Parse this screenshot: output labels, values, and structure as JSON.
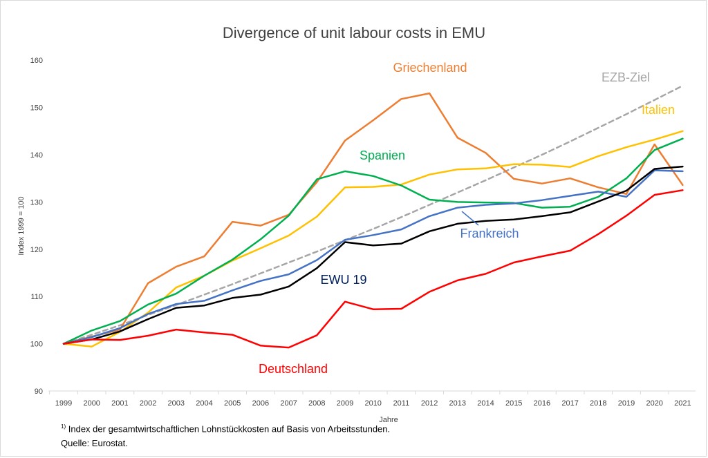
{
  "chart_data": {
    "type": "line",
    "title": "Divergence of unit labour costs in EMU",
    "xlabel": "Jahre",
    "ylabel": "Index 1999 = 100",
    "x": [
      1999,
      2000,
      2001,
      2002,
      2003,
      2004,
      2005,
      2006,
      2007,
      2008,
      2009,
      2010,
      2011,
      2012,
      2013,
      2014,
      2015,
      2016,
      2017,
      2018,
      2019,
      2020,
      2021
    ],
    "ylim": [
      90,
      160
    ],
    "yticks": [
      90,
      100,
      110,
      120,
      130,
      140,
      150,
      160
    ],
    "grid": false,
    "legend": "none",
    "series": [
      {
        "name": "EZB-Ziel",
        "color": "#a6a6a6",
        "dashed": true,
        "values": [
          100,
          101.9,
          103.9,
          106.1,
          108.2,
          110.4,
          112.6,
          114.9,
          117.2,
          119.5,
          121.9,
          124.3,
          126.8,
          129.4,
          132.0,
          134.6,
          137.3,
          140.0,
          142.8,
          145.7,
          148.6,
          151.6,
          154.6
        ]
      },
      {
        "name": "Griechenland",
        "color": "#ed7d31",
        "values": [
          100,
          101.5,
          103.0,
          112.8,
          116.3,
          118.5,
          125.8,
          125.0,
          127.3,
          134.2,
          143.0,
          147.3,
          151.8,
          153.0,
          143.6,
          140.4,
          134.9,
          133.9,
          135.0,
          133.1,
          131.7,
          142.2,
          133.6
        ]
      },
      {
        "name": "Italien",
        "color": "#ffc000",
        "values": [
          100,
          99.4,
          102.5,
          106.6,
          111.9,
          114.4,
          117.6,
          120.2,
          122.9,
          126.9,
          133.1,
          133.2,
          133.7,
          135.8,
          136.9,
          137.1,
          138.0,
          137.9,
          137.4,
          139.7,
          141.6,
          143.2,
          145.0
        ]
      },
      {
        "name": "Spanien",
        "color": "#00b050",
        "values": [
          100,
          102.8,
          104.8,
          108.3,
          110.6,
          114.4,
          117.8,
          122.1,
          127.1,
          134.8,
          136.5,
          135.5,
          133.5,
          130.5,
          130.0,
          129.9,
          129.8,
          128.8,
          129.0,
          131.1,
          135.0,
          141.0,
          143.4
        ]
      },
      {
        "name": "Frankreich",
        "color": "#4472c4",
        "values": [
          100,
          101.4,
          103.3,
          106.3,
          108.4,
          109.1,
          111.3,
          113.3,
          114.7,
          117.7,
          122.0,
          123.0,
          124.2,
          127.0,
          128.8,
          129.4,
          129.7,
          130.4,
          131.3,
          132.2,
          131.1,
          136.7,
          136.5
        ]
      },
      {
        "name": "EWU 19",
        "color": "#000000",
        "values": [
          100,
          100.9,
          102.6,
          105.2,
          107.6,
          108.1,
          109.7,
          110.4,
          112.1,
          116.0,
          121.5,
          120.8,
          121.2,
          123.8,
          125.4,
          126.0,
          126.3,
          127.0,
          127.8,
          130.1,
          132.4,
          137.0,
          137.5
        ]
      },
      {
        "name": "Deutschland",
        "color": "#ff0000",
        "values": [
          100,
          100.9,
          100.8,
          101.7,
          103.0,
          102.4,
          101.9,
          99.6,
          99.2,
          101.8,
          108.9,
          107.3,
          107.4,
          111.0,
          113.4,
          114.8,
          117.2,
          118.5,
          119.7,
          123.2,
          127.1,
          131.5,
          132.5
        ]
      }
    ],
    "labels": [
      {
        "text": "Griechenland",
        "color": "#ed7d31"
      },
      {
        "text": "EZB-Ziel",
        "color": "#a6a6a6"
      },
      {
        "text": "Italien",
        "color": "#ffc000"
      },
      {
        "text": "Spanien",
        "color": "#00b050"
      },
      {
        "text": "Frankreich",
        "color": "#4472c4"
      },
      {
        "text": "EWU 19",
        "color": "#002060"
      },
      {
        "text": "Deutschland",
        "color": "#ff0000"
      }
    ]
  },
  "footnote": {
    "marker": "1)",
    "line1": "Index der gesamtwirtschaftlichen Lohnstückkosten auf Basis von Arbeitsstunden.",
    "line2": "Quelle: Eurostat."
  }
}
